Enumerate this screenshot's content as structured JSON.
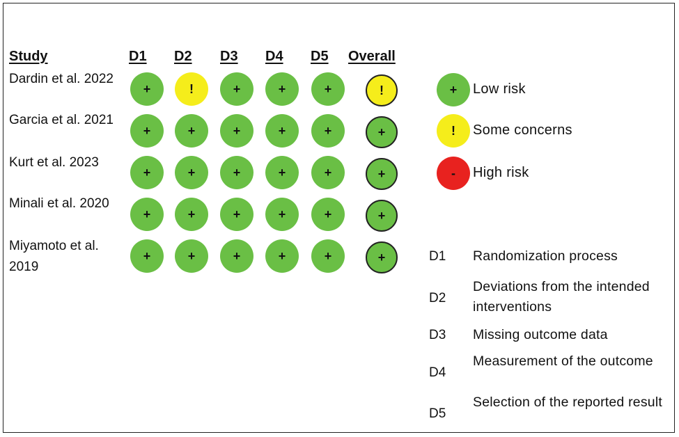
{
  "table": {
    "headers": {
      "study": "Study",
      "domains": [
        "D1",
        "D2",
        "D3",
        "D4",
        "D5"
      ],
      "overall": "Overall"
    },
    "rows": [
      {
        "study": "Dardin et al. 2022",
        "judgements": [
          "+",
          "!",
          "+",
          "+",
          "+"
        ],
        "overall": "!"
      },
      {
        "study": "Garcia et al. 2021",
        "judgements": [
          "+",
          "+",
          "+",
          "+",
          "+"
        ],
        "overall": "+"
      },
      {
        "study": "Kurt et al. 2023",
        "judgements": [
          "+",
          "+",
          "+",
          "+",
          "+"
        ],
        "overall": "+"
      },
      {
        "study": "Minali et al. 2020",
        "judgements": [
          "+",
          "+",
          "+",
          "+",
          "+"
        ],
        "overall": "+"
      },
      {
        "study": "Miyamoto et al. 2019",
        "judgements": [
          "+",
          "+",
          "+",
          "+",
          "+"
        ],
        "overall": "+"
      }
    ]
  },
  "legend": [
    {
      "symbol": "+",
      "label": "Low risk",
      "color": "#6abf45"
    },
    {
      "symbol": "!",
      "label": "Some concerns",
      "color": "#f5ed1b"
    },
    {
      "symbol": "-",
      "label": "High risk",
      "color": "#e8221f"
    }
  ],
  "domains_key": [
    {
      "code": "D1",
      "name": "Randomization process"
    },
    {
      "code": "D2",
      "name": "Deviations from the intended interventions"
    },
    {
      "code": "D3",
      "name": "Missing outcome data"
    },
    {
      "code": "D4",
      "name": "Measurement of the outcome"
    },
    {
      "code": "D5",
      "name": "Selection of the reported result"
    }
  ]
}
